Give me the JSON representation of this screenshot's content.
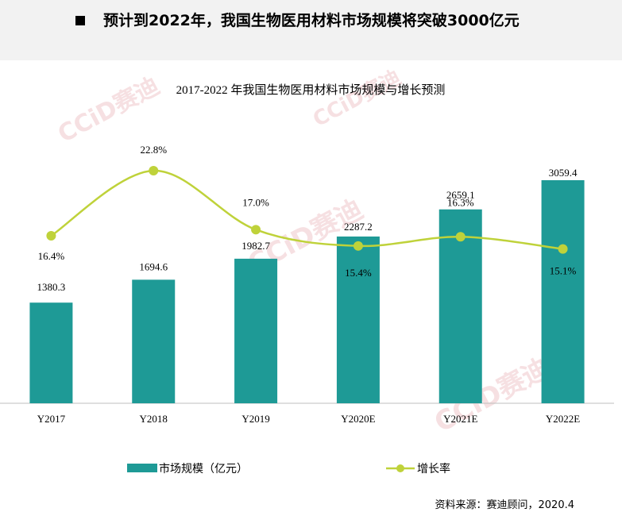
{
  "header": {
    "title": "预计到2022年，我国生物医用材料市场规模将突破3000亿元"
  },
  "source": "资料来源：赛迪顾问，2020.4",
  "watermark": "CCiD赛迪",
  "colors": {
    "bar": "#1e9a96",
    "line": "#bfd23a",
    "header_bg": "#f2f2f2"
  },
  "chart_data": {
    "type": "bar",
    "title": "2017-2022 年我国生物医用材料市场规模与增长预测",
    "categories": [
      "Y2017",
      "Y2018",
      "Y2019",
      "Y2020E",
      "Y2021E",
      "Y2022E"
    ],
    "series": [
      {
        "name": "市场规模（亿元）",
        "type": "bar",
        "values": [
          1380.3,
          1694.6,
          1982.7,
          2287.2,
          2659.1,
          3059.4
        ],
        "labels": [
          "1380.3",
          "1694.6",
          "1982.7",
          "2287.2",
          "2659.1",
          "3059.4"
        ]
      },
      {
        "name": "增长率",
        "type": "line",
        "values": [
          16.4,
          22.8,
          17.0,
          15.4,
          16.3,
          15.1
        ],
        "labels": [
          "16.4%",
          "22.8%",
          "17.0%",
          "15.4%",
          "16.3%",
          "15.1%"
        ]
      }
    ],
    "legend": "bottom"
  }
}
